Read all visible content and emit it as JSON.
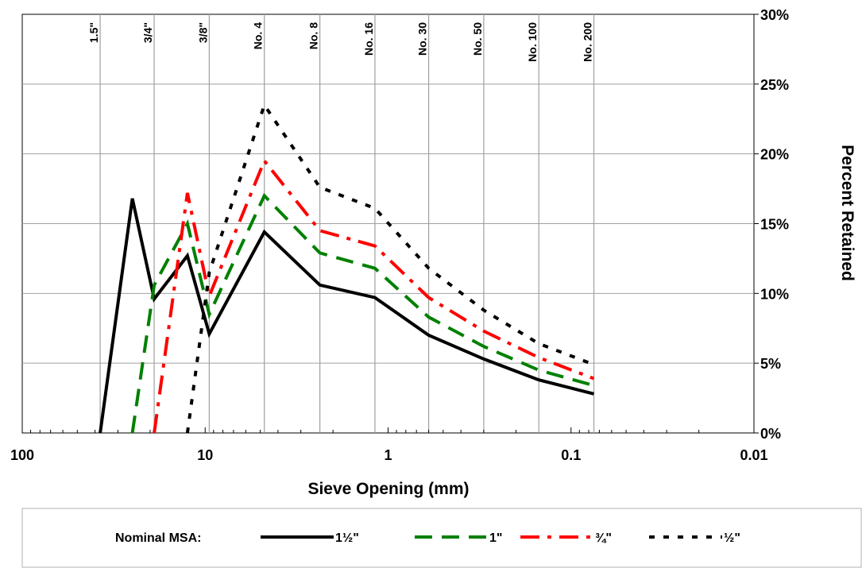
{
  "chart_data": {
    "type": "line",
    "xlabel": "Sieve Opening (mm)",
    "ylabel": "Percent Retained",
    "x_scale": "log",
    "x_reversed": true,
    "xlim": [
      100,
      0.01
    ],
    "ylim": [
      0,
      30
    ],
    "x_tick_labels": [
      {
        "value": 100,
        "label": "100"
      },
      {
        "value": 10,
        "label": "10"
      },
      {
        "value": 1,
        "label": "1"
      },
      {
        "value": 0.1,
        "label": "0.1"
      },
      {
        "value": 0.01,
        "label": "0.01"
      }
    ],
    "y_ticks": [
      0,
      5,
      10,
      15,
      20,
      25,
      30
    ],
    "y_tick_labels": [
      "0%",
      "5%",
      "10%",
      "15%",
      "20%",
      "25%",
      "30%"
    ],
    "y_axis_side": "right",
    "gridlines": "vertical at sieve sizes",
    "sieves": [
      {
        "label": "1.5\"",
        "mm": 37.5
      },
      {
        "label": "3/4\"",
        "mm": 19
      },
      {
        "label": "3/8\"",
        "mm": 9.5
      },
      {
        "label": "No. 4",
        "mm": 4.75
      },
      {
        "label": "No. 8",
        "mm": 2.36
      },
      {
        "label": "No. 16",
        "mm": 1.18
      },
      {
        "label": "No. 30",
        "mm": 0.6
      },
      {
        "label": "No. 50",
        "mm": 0.3
      },
      {
        "label": "No. 100",
        "mm": 0.15
      },
      {
        "label": "No. 200",
        "mm": 0.075
      }
    ],
    "legend_title": "Nominal MSA:",
    "legend_position": "bottom",
    "series": [
      {
        "name": "1½\"",
        "color": "#000000",
        "dash": "solid",
        "x": [
          37.5,
          25,
          19,
          12.5,
          9.5,
          4.75,
          2.36,
          1.18,
          0.6,
          0.3,
          0.15,
          0.075
        ],
        "y": [
          0,
          16.8,
          9.6,
          12.7,
          7.1,
          14.4,
          10.6,
          9.7,
          7.0,
          5.3,
          3.8,
          2.8
        ]
      },
      {
        "name": "1\"",
        "color": "#008000",
        "dash": "dash",
        "x": [
          25,
          19,
          12.5,
          9.5,
          4.75,
          2.36,
          1.18,
          0.6,
          0.3,
          0.15,
          0.075
        ],
        "y": [
          0,
          10.6,
          15.0,
          8.5,
          17.0,
          12.9,
          11.8,
          8.3,
          6.2,
          4.5,
          3.4
        ]
      },
      {
        "name": "¾\"",
        "color": "#ff0000",
        "dash": "dashdot",
        "x": [
          19,
          12.5,
          9.5,
          4.75,
          2.36,
          1.18,
          0.6,
          0.3,
          0.15,
          0.075
        ],
        "y": [
          0,
          17.2,
          9.8,
          19.5,
          14.5,
          13.4,
          9.7,
          7.3,
          5.4,
          3.9
        ]
      },
      {
        "name": "½\"",
        "color": "#000000",
        "dash": "dot",
        "x": [
          12.5,
          9.5,
          4.75,
          2.36,
          1.18,
          0.6,
          0.3,
          0.15,
          0.075
        ],
        "y": [
          0,
          11.5,
          23.5,
          17.6,
          16.1,
          11.8,
          8.8,
          6.4,
          4.9
        ]
      }
    ]
  }
}
